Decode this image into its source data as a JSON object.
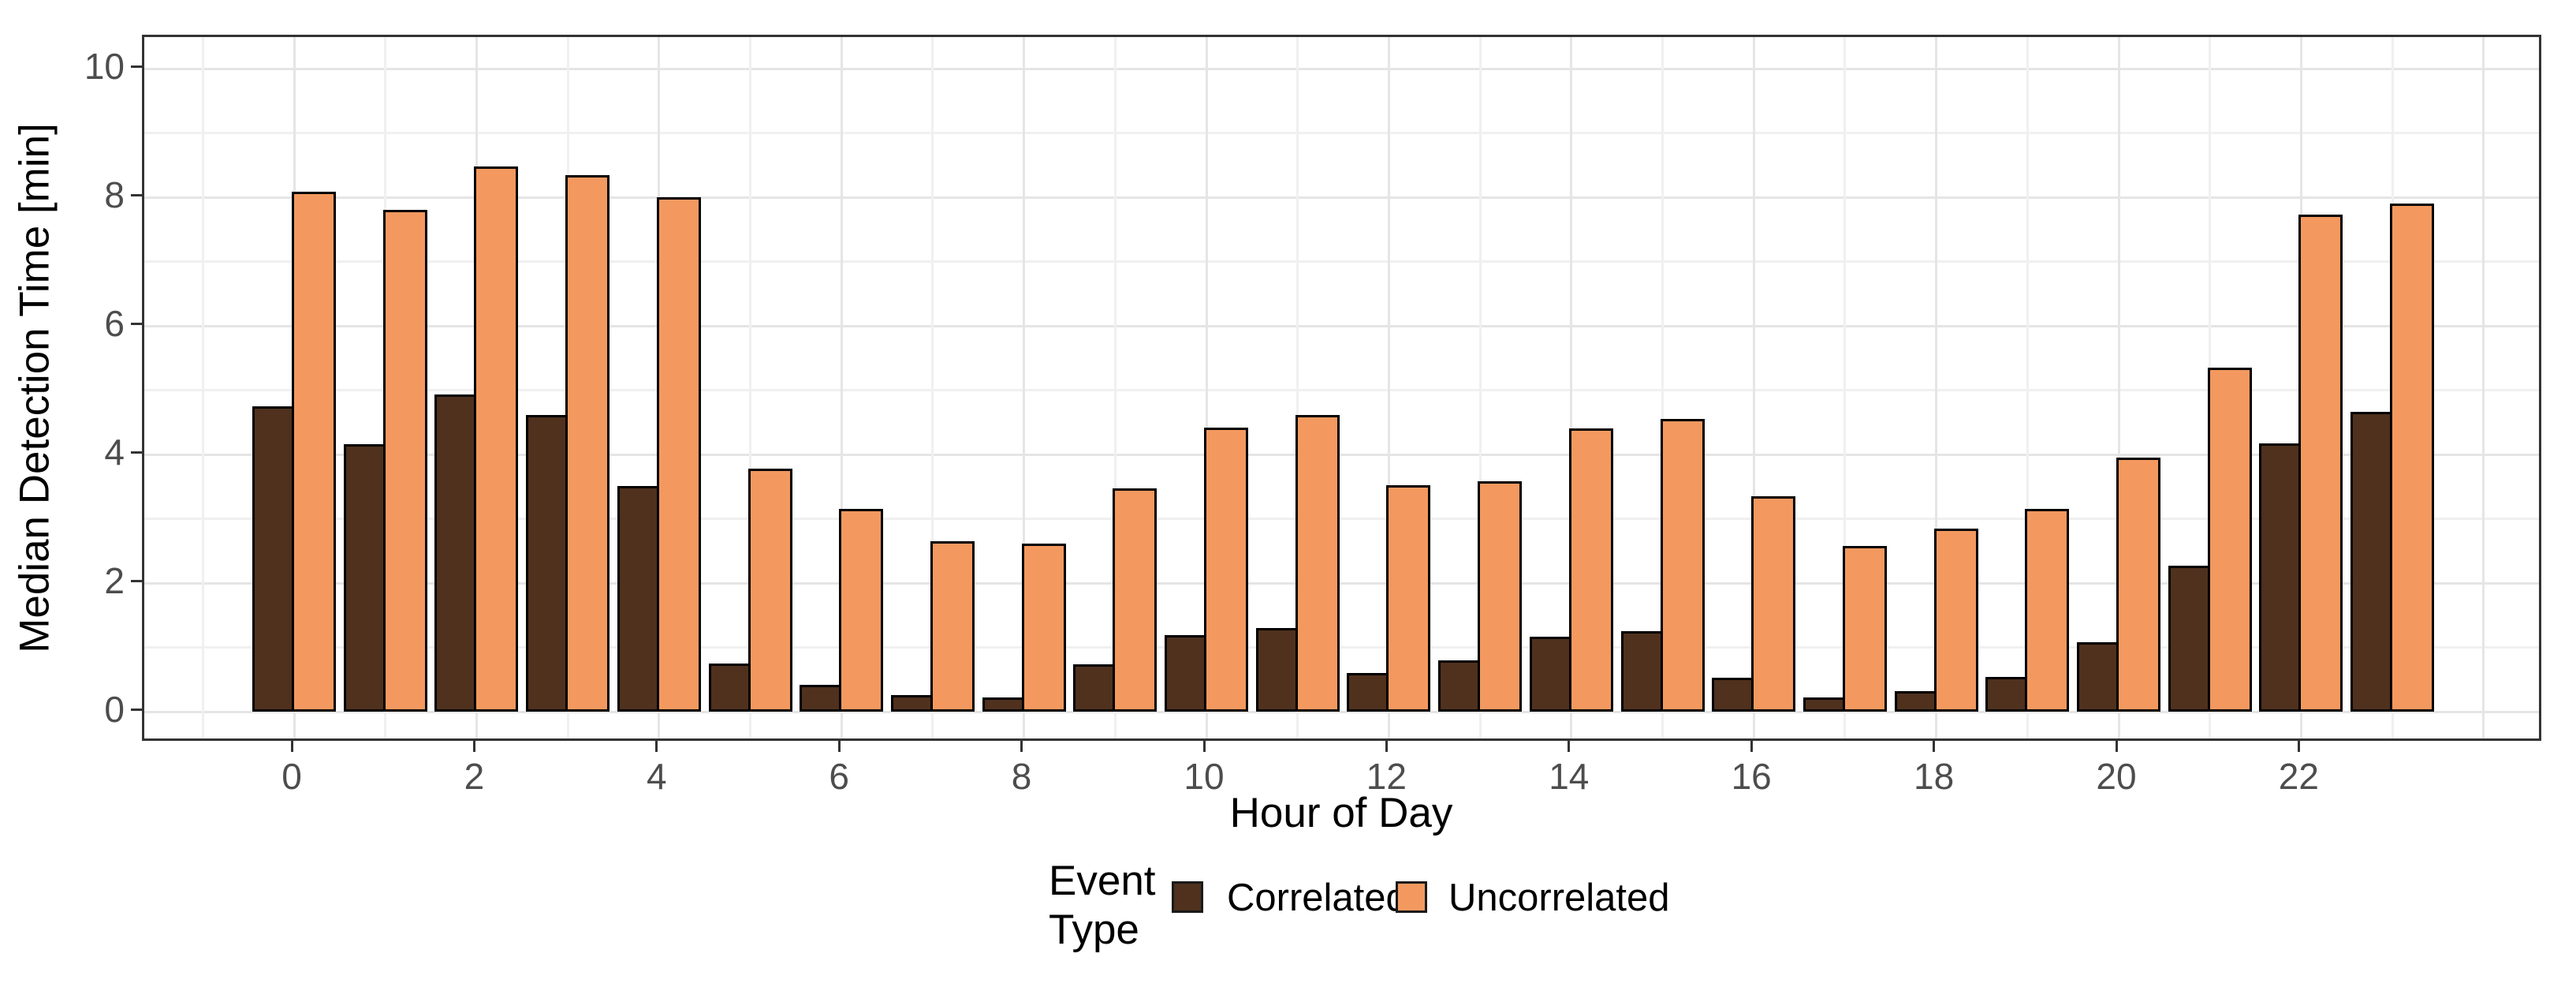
{
  "chart_data": {
    "type": "bar",
    "title": "",
    "xlabel": "Hour of Day",
    "ylabel": "Median Detection Time [min]",
    "categories": [
      0,
      1,
      2,
      3,
      4,
      5,
      6,
      7,
      8,
      9,
      10,
      11,
      12,
      13,
      14,
      15,
      16,
      17,
      18,
      19,
      20,
      21,
      22,
      23
    ],
    "series": [
      {
        "name": "Correlated",
        "color": "#4F311E",
        "values": [
          4.75,
          4.16,
          4.93,
          4.61,
          3.51,
          0.75,
          0.42,
          0.26,
          0.22,
          0.74,
          1.19,
          1.3,
          0.6,
          0.8,
          1.17,
          1.25,
          0.53,
          0.22,
          0.32,
          0.54,
          1.08,
          2.27,
          4.17,
          4.66
        ]
      },
      {
        "name": "Uncorrelated",
        "color": "#F3995F",
        "values": [
          8.08,
          7.8,
          8.48,
          8.34,
          8.0,
          3.78,
          3.15,
          2.65,
          2.61,
          3.47,
          4.42,
          4.61,
          3.52,
          3.58,
          4.4,
          4.55,
          3.35,
          2.58,
          2.85,
          3.15,
          3.95,
          5.35,
          7.73,
          7.9
        ]
      }
    ],
    "x_ticks": [
      0,
      2,
      4,
      6,
      8,
      10,
      12,
      14,
      16,
      18,
      20,
      22
    ],
    "y_ticks": [
      0,
      2,
      4,
      6,
      8,
      10
    ],
    "ylim": [
      -0.48,
      10.5
    ],
    "xlim": [
      -1.64,
      24.66
    ],
    "grid": true,
    "legend_position": "bottom",
    "bar_outline_color": "#000000"
  },
  "legend": {
    "title_line1": "Event",
    "title_line2": "Type",
    "items": [
      {
        "label": "Correlated",
        "color": "#4F311E"
      },
      {
        "label": "Uncorrelated",
        "color": "#F3995F"
      }
    ]
  }
}
